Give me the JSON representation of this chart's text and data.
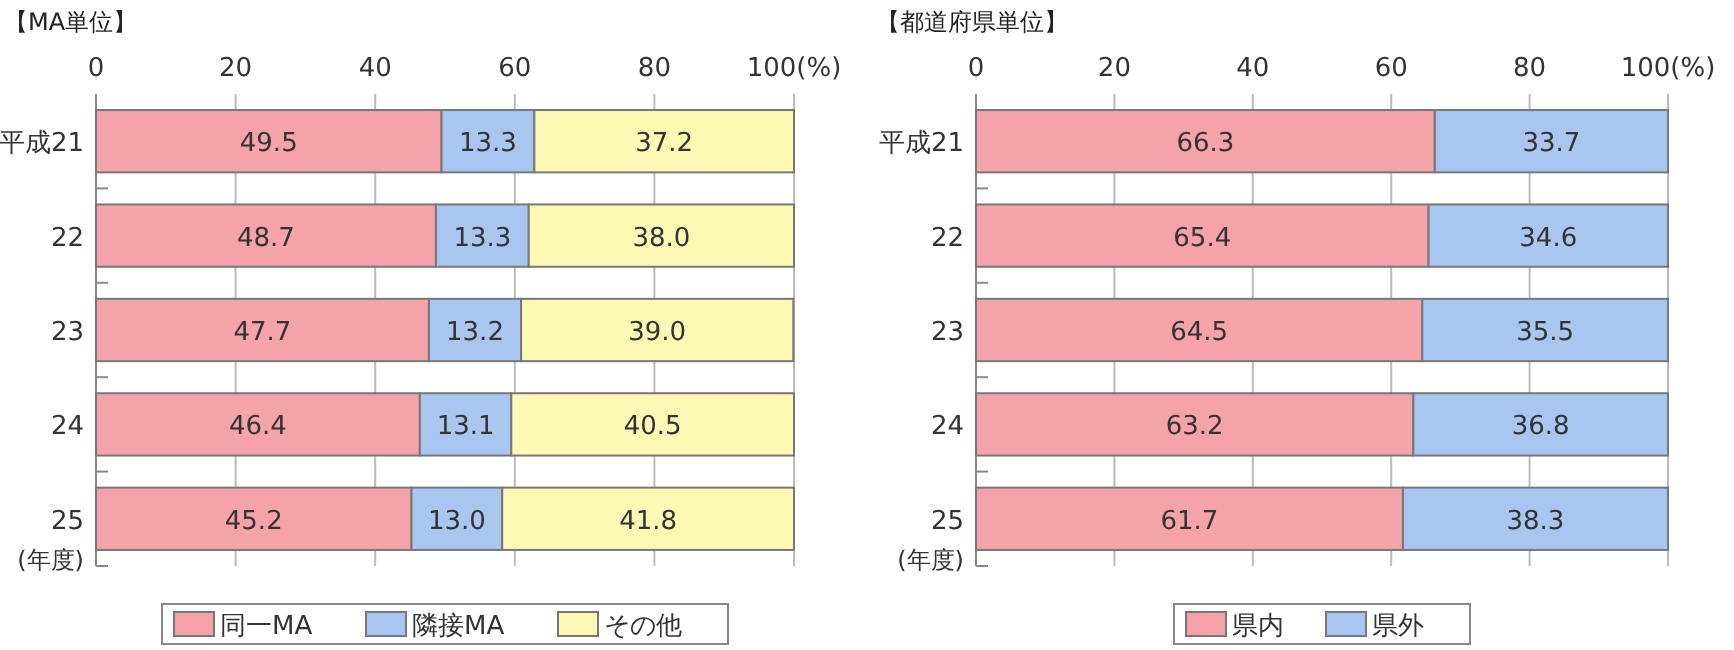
{
  "chart_data": [
    {
      "type": "bar",
      "title": "【MA単位】",
      "ylabel": "(年度)",
      "orientation": "horizontal",
      "stacked": true,
      "categories": [
        "平成21",
        "22",
        "23",
        "24",
        "25"
      ],
      "series": [
        {
          "name": "同一MA",
          "color": "#f4a3a8",
          "values": [
            49.5,
            48.7,
            47.7,
            46.4,
            45.2
          ],
          "value_labels": [
            "49.5",
            "48.7",
            "47.7",
            "46.4",
            "45.2"
          ]
        },
        {
          "name": "隣接MA",
          "color": "#a8c6ef",
          "values": [
            13.3,
            13.3,
            13.2,
            13.1,
            13.0
          ],
          "value_labels": [
            "13.3",
            "13.3",
            "13.2",
            "13.1",
            "13.0"
          ]
        },
        {
          "name": "その他",
          "color": "#fdf9b5",
          "values": [
            37.2,
            38.0,
            39.0,
            40.5,
            41.8
          ],
          "value_labels": [
            "37.2",
            "38.0",
            "39.0",
            "40.5",
            "41.8"
          ]
        }
      ],
      "xlim": [
        0,
        100
      ],
      "xticks": [
        0,
        20,
        40,
        60,
        80,
        {
          "value": 100,
          "label": "100(%)"
        }
      ],
      "grid": "x",
      "legend": "bottom"
    },
    {
      "type": "bar",
      "title": "【都道府県単位】",
      "ylabel": "(年度)",
      "orientation": "horizontal",
      "stacked": true,
      "categories": [
        "平成21",
        "22",
        "23",
        "24",
        "25"
      ],
      "series": [
        {
          "name": "県内",
          "color": "#f4a3a8",
          "values": [
            66.3,
            65.4,
            64.5,
            63.2,
            61.7
          ]
        },
        {
          "name": "県外",
          "color": "#a8c6ef",
          "values": [
            33.7,
            34.6,
            35.5,
            36.8,
            38.3
          ]
        }
      ],
      "xlim": [
        0,
        100
      ],
      "xticks": [
        0,
        20,
        40,
        60,
        80,
        {
          "value": 100,
          "label": "100(%)"
        }
      ],
      "grid": "x",
      "legend": "bottom",
      "data_labels": true
    }
  ]
}
